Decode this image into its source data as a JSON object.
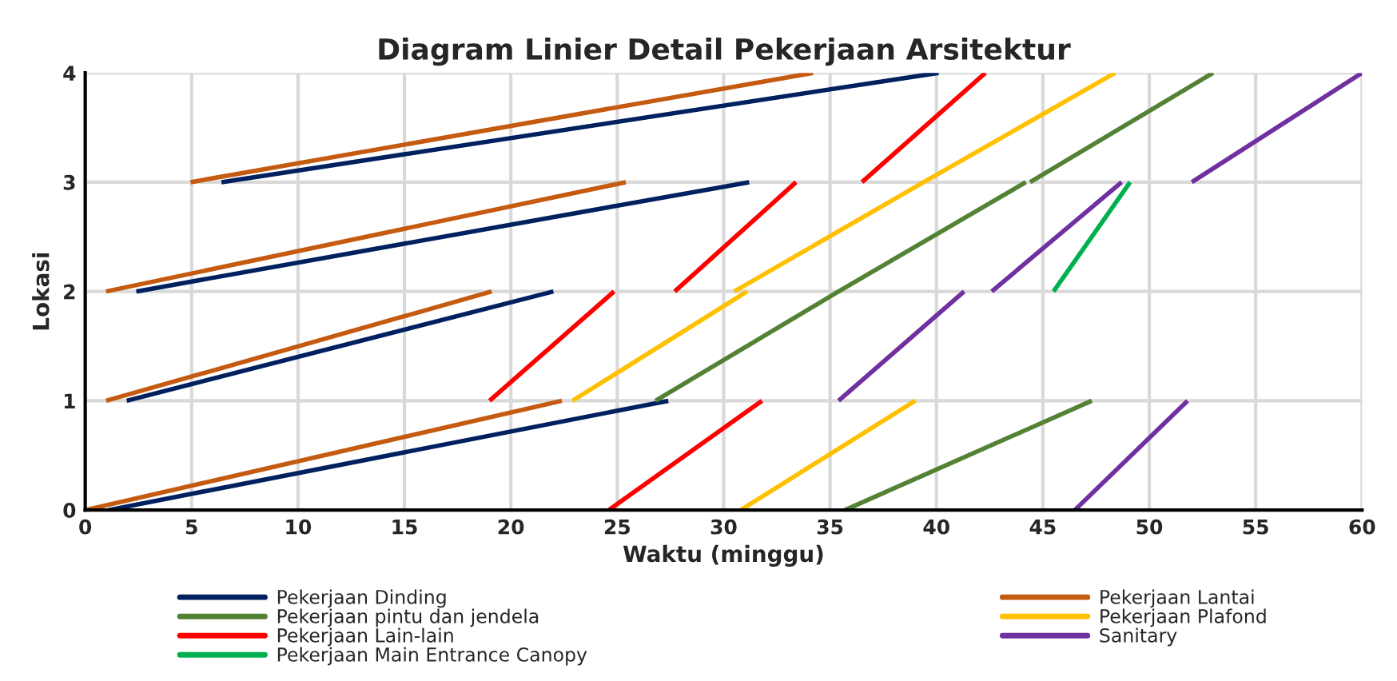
{
  "chart_data": {
    "type": "line",
    "title": "Diagram Linier Detail Pekerjaan Arsitektur",
    "xlabel": "Waktu (minggu)",
    "ylabel": "Lokasi",
    "xlim": [
      0,
      60
    ],
    "xticks": [
      0,
      5,
      10,
      15,
      20,
      25,
      30,
      35,
      40,
      45,
      50,
      55,
      60
    ],
    "ylim": [
      0,
      4
    ],
    "yticks": [
      0,
      1,
      2,
      3,
      4
    ],
    "grid": true,
    "legend": "bottom",
    "marker": "none",
    "line_style": "solid",
    "series": [
      {
        "name": "Pekerjaan Dinding",
        "color": "#002060",
        "x": [
          1.1,
          27.4,
          null,
          1.95,
          22.0,
          null,
          2.4,
          31.2,
          null,
          6.4,
          40.1
        ],
        "values": [
          0,
          1,
          null,
          1,
          2,
          null,
          2,
          3,
          null,
          3,
          4
        ]
      },
      {
        "name": "Pekerjaan Lantai",
        "color": "#c55a11",
        "x": [
          0,
          22.4,
          null,
          0.98,
          19.1,
          null,
          0.98,
          25.4,
          null,
          4.95,
          34.2
        ],
        "values": [
          0,
          1,
          null,
          1,
          2,
          null,
          2,
          3,
          null,
          3,
          4
        ]
      },
      {
        "name": "Pekerjaan pintu dan jendela",
        "color": "#548235",
        "x": [
          35.7,
          47.3,
          null,
          26.8,
          35.4,
          44.2,
          null,
          44.4,
          53.0
        ],
        "values": [
          0,
          1,
          null,
          1,
          2,
          3,
          null,
          3,
          4
        ]
      },
      {
        "name": "Pekerjaan Plafond",
        "color": "#ffc000",
        "x": [
          30.8,
          39.0,
          null,
          22.9,
          31.1,
          null,
          30.5,
          39.4,
          48.4
        ],
        "values": [
          0,
          1,
          null,
          1,
          2,
          null,
          2,
          3,
          4
        ]
      },
      {
        "name": "Pekerjaan Lain-lain",
        "color": "#ff0000",
        "x": [
          24.6,
          31.8,
          null,
          19.0,
          24.85,
          null,
          27.7,
          33.4,
          null,
          36.5,
          42.3
        ],
        "values": [
          0,
          1,
          null,
          1,
          2,
          null,
          2,
          3,
          null,
          3,
          4
        ]
      },
      {
        "name": "Sanitary",
        "color": "#7030a0",
        "x": [
          46.5,
          51.8,
          null,
          35.4,
          41.3,
          null,
          42.6,
          48.7,
          null,
          52.0,
          60
        ],
        "values": [
          0,
          1,
          null,
          1,
          2,
          null,
          2,
          3,
          null,
          3,
          4
        ]
      },
      {
        "name": "Pekerjaan Main Entrance Canopy",
        "color": "#00b050",
        "x": [
          45.5,
          49.1
        ],
        "values": [
          2,
          3
        ]
      }
    ]
  }
}
